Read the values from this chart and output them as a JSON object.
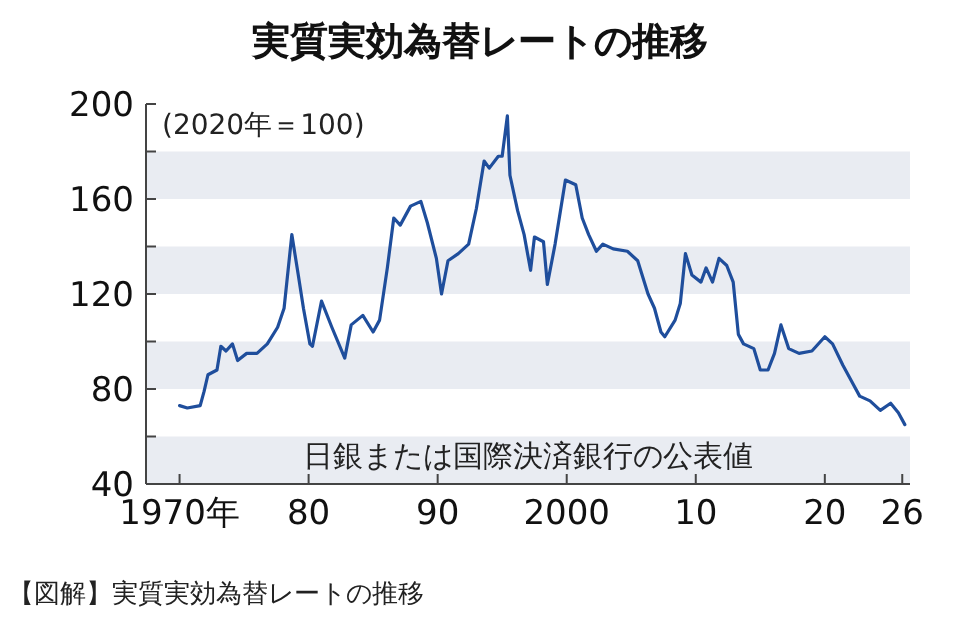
{
  "chart_data": {
    "type": "line",
    "title": "実質実効為替レートの推移",
    "x": [
      1970.0,
      1970.6,
      1971.6,
      1971.9,
      1972.2,
      1972.9,
      1973.2,
      1973.6,
      1974.1,
      1974.5,
      1975.2,
      1976.0,
      1976.8,
      1977.6,
      1978.1,
      1978.7,
      1979.2,
      1979.6,
      1980.1,
      1980.3,
      1981.0,
      1981.8,
      1982.8,
      1983.3,
      1984.2,
      1985.0,
      1985.5,
      1986.1,
      1986.6,
      1987.1,
      1987.9,
      1988.7,
      1989.2,
      1989.9,
      1990.3,
      1990.8,
      1991.6,
      1992.4,
      1993.0,
      1993.6,
      1994.0,
      1994.7,
      1995.0,
      1995.4,
      1995.6,
      1996.2,
      1996.7,
      1997.2,
      1997.5,
      1998.2,
      1998.5,
      1999.1,
      1999.9,
      2000.7,
      2001.2,
      2001.7,
      2002.3,
      2002.8,
      2003.6,
      2004.7,
      2005.5,
      2006.3,
      2006.8,
      2007.3,
      2007.6,
      2008.4,
      2008.8,
      2009.2,
      2009.7,
      2010.4,
      2010.8,
      2011.3,
      2011.8,
      2012.4,
      2012.9,
      2013.3,
      2013.7,
      2014.5,
      2015.0,
      2015.6,
      2016.1,
      2016.6,
      2017.2,
      2018.0,
      2019.0,
      2020.0,
      2020.6,
      2021.4,
      2022.2,
      2022.7,
      2023.5,
      2024.3,
      2025.1,
      2025.7,
      2026.2
    ],
    "series": [
      {
        "color": "#1f4e9c",
        "values": [
          73,
          72,
          73,
          79,
          86,
          88,
          98,
          96,
          99,
          92,
          95,
          95,
          99,
          106,
          114,
          145,
          128,
          114,
          99,
          98,
          117,
          106,
          93,
          107,
          111,
          104,
          109,
          131,
          152,
          149,
          157,
          159,
          150,
          135,
          120,
          134,
          137,
          141,
          156,
          176,
          173,
          178,
          178,
          195,
          170,
          155,
          145,
          130,
          144,
          142,
          124,
          141,
          168,
          166,
          152,
          145,
          138,
          141,
          139,
          138,
          134,
          120,
          114,
          104,
          102,
          109,
          116,
          137,
          128,
          125,
          131,
          125,
          135,
          132,
          125,
          103,
          99,
          97,
          88,
          88,
          95,
          107,
          97,
          95,
          96,
          102,
          99,
          90,
          82,
          77,
          75,
          71,
          74,
          70,
          65
        ]
      }
    ],
    "xlim": [
      1967.4,
      2026.6
    ],
    "xticks": [
      {
        "value": 1970,
        "label": "1970年"
      },
      {
        "value": 1980,
        "label": "80"
      },
      {
        "value": 1990,
        "label": "90"
      },
      2000,
      {
        "value": 2010,
        "label": "10"
      },
      {
        "value": 2020,
        "label": "20"
      },
      {
        "value": 2026,
        "label": "26"
      }
    ],
    "ylim": [
      40,
      200
    ],
    "yticks": [
      40,
      {
        "value": 60,
        "label": null
      },
      80,
      {
        "value": 100,
        "label": null
      },
      120,
      {
        "value": 140,
        "label": null
      },
      160,
      {
        "value": 180,
        "label": null
      },
      200
    ],
    "bands": [
      {
        "axis": "y",
        "from": 40,
        "to": 60,
        "color": "#e9ecf2"
      },
      {
        "axis": "y",
        "from": 80,
        "to": 100,
        "color": "#e9ecf2"
      },
      {
        "axis": "y",
        "from": 120,
        "to": 140,
        "color": "#e9ecf2"
      },
      {
        "axis": "y",
        "from": 160,
        "to": 180,
        "color": "#e9ecf2"
      }
    ],
    "annotations": [
      "(2020年＝100)",
      "日銀または国際決済銀行の公表値",
      "【図解】実質実効為替レートの推移"
    ]
  }
}
